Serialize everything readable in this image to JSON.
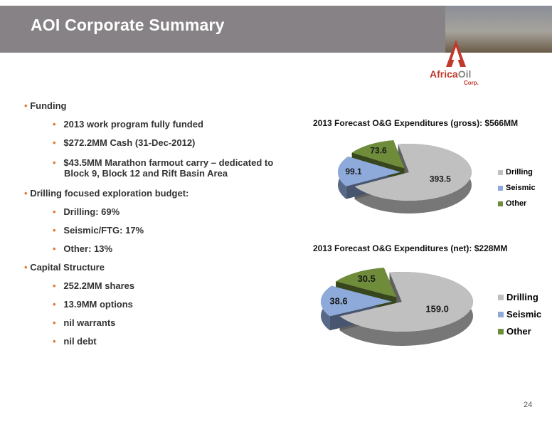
{
  "header": {
    "title": "AOI Corporate Summary"
  },
  "logo": {
    "name_part1": "Africa",
    "name_part2": "Oil",
    "suffix": "Corp."
  },
  "bullets": [
    {
      "level": 1,
      "text": "Funding"
    },
    {
      "level": 2,
      "text": "2013 work program fully funded"
    },
    {
      "level": 2,
      "text": "$272.2MM Cash (31-Dec-2012)"
    },
    {
      "level": 2,
      "text": "$43.5MM Marathon farmout carry – dedicated to"
    },
    {
      "level": 3,
      "text": "Block 9, Block 12 and Rift Basin Area"
    },
    {
      "level": 1,
      "text": "Drilling focused exploration budget:"
    },
    {
      "level": 2,
      "text": "Drilling: 69%"
    },
    {
      "level": 2,
      "text": "Seismic/FTG:  17%"
    },
    {
      "level": 2,
      "text": "Other: 13%"
    },
    {
      "level": 1,
      "text": "Capital Structure"
    },
    {
      "level": 2,
      "text": "252.2MM shares"
    },
    {
      "level": 2,
      "text": "13.9MM options"
    },
    {
      "level": 2,
      "text": "nil warrants"
    },
    {
      "level": 2,
      "text": "nil debt"
    }
  ],
  "chart_data": [
    {
      "type": "pie",
      "title": "2013 Forecast O&G Expenditures (gross): $566MM",
      "categories": [
        "Drilling",
        "Seismic",
        "Other"
      ],
      "values": [
        393.5,
        99.1,
        73.6
      ],
      "value_labels": [
        "393.5",
        "99.1",
        "73.6"
      ],
      "colors": [
        "#c0c0c0",
        "#8eaadb",
        "#6e8c3a"
      ],
      "legend_position": "right",
      "style": "3d-exploded"
    },
    {
      "type": "pie",
      "title": "2013 Forecast O&G Expenditures (net): $228MM",
      "categories": [
        "Drilling",
        "Seismic",
        "Other"
      ],
      "values": [
        159.0,
        38.6,
        30.5
      ],
      "value_labels": [
        "159.0",
        "38.6",
        "30.5"
      ],
      "colors": [
        "#c0c0c0",
        "#8eaadb",
        "#6e8c3a"
      ],
      "legend_position": "right",
      "style": "3d-exploded"
    }
  ],
  "footer": {
    "page_number": "24"
  }
}
